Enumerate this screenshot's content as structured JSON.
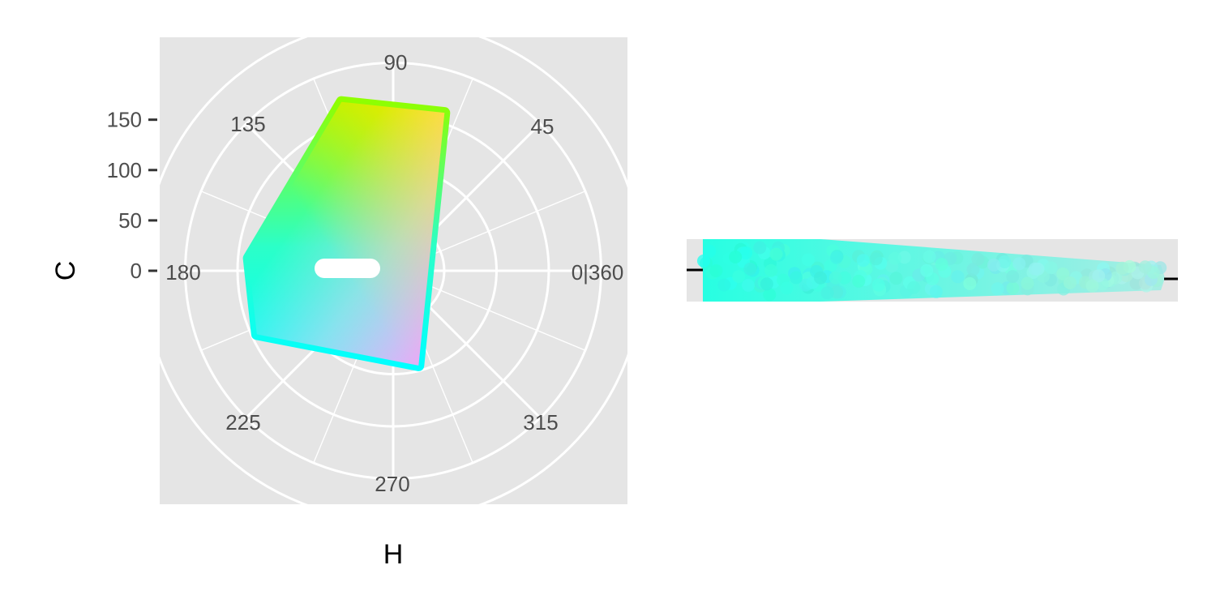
{
  "chart_data": [
    {
      "type": "polar-hcl-palette",
      "xlabel": "H",
      "ylabel": "C",
      "hue_ticks": [
        {
          "value": 0,
          "label": "0|360"
        },
        {
          "value": 45,
          "label": "45"
        },
        {
          "value": 90,
          "label": "90"
        },
        {
          "value": 135,
          "label": "135"
        },
        {
          "value": 180,
          "label": "180"
        },
        {
          "value": 225,
          "label": "225"
        },
        {
          "value": 270,
          "label": "270"
        },
        {
          "value": 315,
          "label": "315"
        }
      ],
      "chroma_ticks": [
        {
          "value": 0,
          "label": "0"
        },
        {
          "value": 50,
          "label": "50"
        },
        {
          "value": 100,
          "label": "100"
        },
        {
          "value": 150,
          "label": "150"
        }
      ],
      "hue_range": [
        60,
        290
      ],
      "chroma_range": [
        0,
        150
      ],
      "region_corners": [
        {
          "h": 107,
          "c": 120,
          "color": "#8fff00"
        },
        {
          "h": 72,
          "c": 110,
          "color": "#ffe000"
        },
        {
          "h": 285,
          "c": 45,
          "color": "#ff9af7"
        },
        {
          "h": 205,
          "c": 95,
          "color": "#00ffff"
        },
        {
          "h": 175,
          "c": 90,
          "color": "#1affc8"
        }
      ],
      "highlight": {
        "h_from": 180,
        "h_to": 355,
        "c_from": 95,
        "c_to": 10,
        "color": "#ffffff"
      },
      "background": "#e5e5e5",
      "grid_color": "#ffffff"
    },
    {
      "type": "scatter-strip",
      "x_range": [
        0,
        100
      ],
      "start_color": "#27ffe2",
      "end_color": "#a9ede4",
      "start_width": 40,
      "end_width": 15,
      "background": "#e5e5e5"
    }
  ]
}
